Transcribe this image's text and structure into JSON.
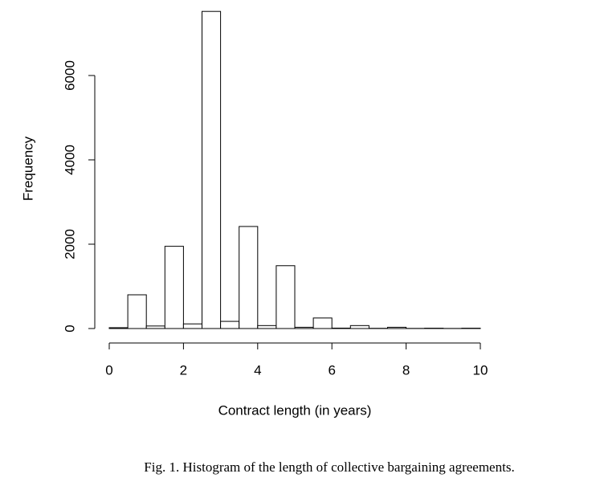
{
  "chart_data": {
    "type": "histogram",
    "xlabel": "Contract length (in years)",
    "ylabel": "Frequency",
    "bins": [
      0,
      0.5,
      1,
      1.5,
      2,
      2.5,
      3,
      3.5,
      4,
      4.5,
      5,
      5.5,
      6,
      6.5,
      7,
      7.5,
      8,
      8.5,
      9,
      9.5,
      10
    ],
    "values": [
      20,
      800,
      60,
      1950,
      110,
      7520,
      170,
      2420,
      70,
      1490,
      30,
      250,
      10,
      70,
      5,
      30,
      3,
      8,
      2,
      8
    ],
    "color": "#ffffff",
    "xlim": [
      0,
      10
    ],
    "xticks": [
      0,
      2,
      4,
      6,
      8,
      10
    ],
    "ylim": [
      0,
      7600
    ],
    "yticks": [
      0,
      2000,
      4000,
      6000
    ]
  },
  "caption": "Fig. 1. Histogram of the length of collective bargaining agreements."
}
